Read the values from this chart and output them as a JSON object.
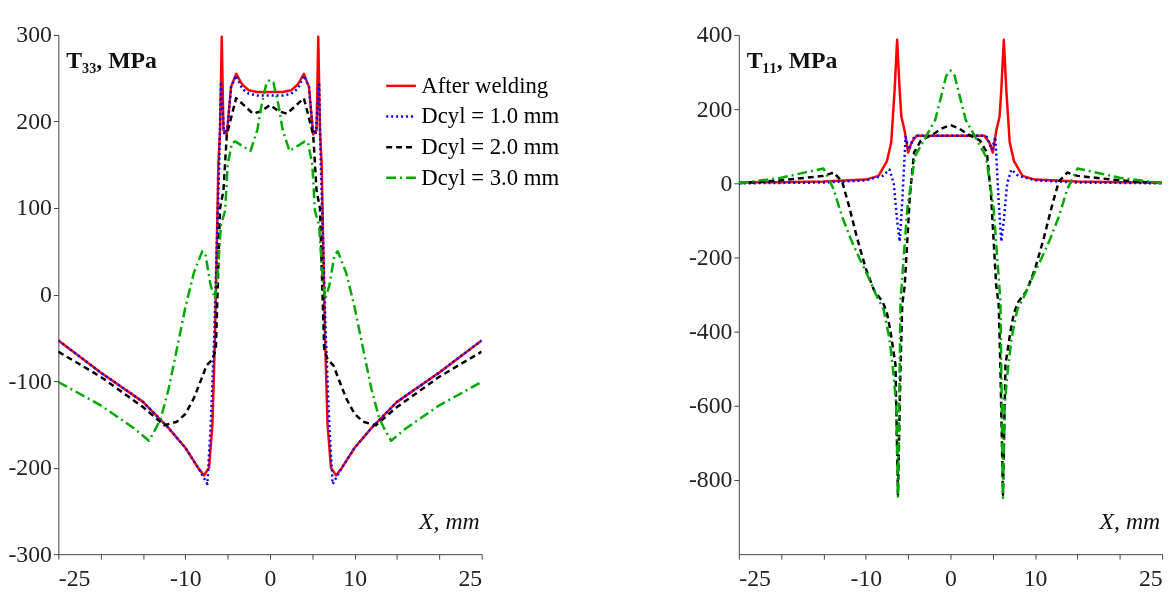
{
  "chart_data": [
    {
      "type": "line",
      "xlabel": "X, mm",
      "ylabel": "T₃₃, MPa",
      "xlim": [
        -25,
        25
      ],
      "ylim": [
        -300,
        300
      ],
      "xticks": [
        -25,
        {
          "value": -20,
          "label": null
        },
        {
          "value": -15,
          "label": null
        },
        -10,
        {
          "value": -5,
          "label": null
        },
        0,
        {
          "value": 5,
          "label": null
        },
        10,
        {
          "value": 15,
          "label": null
        },
        {
          "value": 20,
          "label": null
        },
        25
      ],
      "yticks": [
        -300,
        -200,
        -100,
        0,
        100,
        200,
        300
      ],
      "grid": false,
      "legend": "top right",
      "series": [
        {
          "name": "After welding",
          "color": "#ff0000",
          "line_style": "solid",
          "x": [
            -25,
            -20,
            -15,
            -12,
            -10,
            -8.5,
            -7.8,
            -7.2,
            -6.8,
            -6.5,
            -6.3,
            -6.1,
            -5.9,
            -5.7,
            -5.5,
            -5.1,
            -4.6,
            -4,
            -3.3,
            -2.5,
            -1.5,
            0,
            1.5,
            2.5,
            3.3,
            4,
            4.6,
            5.1,
            5.5,
            5.7,
            5.9,
            6.1,
            6.3,
            6.5,
            6.8,
            7.2,
            7.8,
            8.5,
            10,
            12,
            15,
            20,
            25
          ],
          "values": [
            -53,
            -90,
            -124,
            -154,
            -177,
            -200,
            -209,
            -200,
            -150,
            -50,
            50,
            150,
            190,
            298,
            190,
            185,
            240,
            255,
            243,
            236,
            234,
            234,
            234,
            236,
            243,
            255,
            240,
            185,
            190,
            298,
            190,
            150,
            50,
            -50,
            -150,
            -200,
            -209,
            -200,
            -177,
            -154,
            -124,
            -90,
            -53
          ]
        },
        {
          "name": "Dcyl = 1.0 mm",
          "color": "#0000ff",
          "line_style": "dotted",
          "x": [
            -25,
            -20,
            -15,
            -12,
            -10,
            -8.5,
            -7.8,
            -7.4,
            -7,
            -6.6,
            -6.3,
            -6,
            -5.8,
            -5.4,
            -5,
            -4.6,
            -4,
            -3.3,
            -2.5,
            -1.5,
            0,
            1.5,
            2.5,
            3.3,
            4,
            4.6,
            5,
            5.4,
            5.8,
            6,
            6.3,
            6.6,
            7,
            7.4,
            7.8,
            8.5,
            10,
            12,
            15,
            20,
            25
          ],
          "values": [
            -53,
            -90,
            -124,
            -154,
            -177,
            -200,
            -212,
            -219,
            -150,
            -50,
            50,
            150,
            243,
            185,
            195,
            240,
            253,
            238,
            232,
            230,
            230,
            230,
            232,
            238,
            253,
            240,
            195,
            185,
            243,
            150,
            50,
            -50,
            -150,
            -219,
            -212,
            -200,
            -177,
            -154,
            -124,
            -90,
            -53
          ]
        },
        {
          "name": "Dcyl = 2.0 mm",
          "color": "#000000",
          "line_style": "dashed",
          "x": [
            -25,
            -20,
            -15,
            -12.5,
            -11,
            -10,
            -9,
            -8,
            -7.5,
            -6.8,
            -6.4,
            -6.2,
            -5.9,
            -5.5,
            -5.1,
            -4,
            -3,
            -2,
            -1,
            0,
            1,
            2,
            3,
            4,
            5.1,
            5.5,
            5.9,
            6.2,
            6.4,
            6.8,
            7.5,
            8,
            9,
            10,
            11,
            12.5,
            15,
            20,
            25
          ],
          "values": [
            -66,
            -95,
            -130,
            -151,
            -147,
            -138,
            -120,
            -95,
            -82,
            -75,
            -63,
            0,
            100,
            120,
            185,
            227,
            218,
            209,
            212,
            219,
            212,
            209,
            218,
            227,
            185,
            120,
            100,
            0,
            -63,
            -75,
            -82,
            -95,
            -120,
            -138,
            -147,
            -151,
            -130,
            -95,
            -66
          ]
        },
        {
          "name": "Dcyl = 3.0 mm",
          "color": "#00aa00",
          "line_style": "dashdot",
          "x": [
            -25,
            -20,
            -16,
            -14.3,
            -13.5,
            -12.9,
            -12,
            -11,
            -10,
            -9,
            -8,
            -7.6,
            -7,
            -6.5,
            -6.2,
            -5.8,
            -5.3,
            -5,
            -4.5,
            -4.1,
            -3,
            -2.3,
            -1.5,
            -1,
            -0.4,
            0,
            0.4,
            1,
            1.5,
            2.3,
            3,
            4.1,
            4.5,
            5,
            5.3,
            5.8,
            6.2,
            6.5,
            7,
            7.6,
            8,
            9,
            10,
            11,
            12,
            12.9,
            13.5,
            14.3,
            16,
            20,
            25
          ],
          "values": [
            -101,
            -128,
            -155,
            -169,
            -155,
            -143,
            -110,
            -63,
            -15,
            25,
            50,
            45,
            10,
            -5,
            20,
            80,
            97,
            150,
            175,
            177,
            170,
            166,
            190,
            219,
            245,
            248,
            245,
            219,
            190,
            166,
            170,
            177,
            175,
            150,
            97,
            80,
            20,
            -5,
            10,
            45,
            50,
            25,
            -15,
            -63,
            -110,
            -143,
            -155,
            -169,
            -155,
            -128,
            -101
          ]
        }
      ]
    },
    {
      "type": "line",
      "xlabel": "X, mm",
      "ylabel": "T₁₁, MPa",
      "xlim": [
        -25,
        25
      ],
      "ylim": [
        -1000,
        400
      ],
      "xticks": [
        -25,
        {
          "value": -20,
          "label": null
        },
        {
          "value": -15,
          "label": null
        },
        -10,
        {
          "value": -5,
          "label": null
        },
        0,
        {
          "value": 5,
          "label": null
        },
        10,
        {
          "value": 15,
          "label": null
        },
        {
          "value": 20,
          "label": null
        },
        25
      ],
      "yticks": [
        -800,
        -600,
        -400,
        -200,
        0,
        200,
        400
      ],
      "grid": false,
      "series": [
        {
          "color": "#ff0000",
          "line_style": "solid",
          "x": [
            -25,
            -20,
            -15,
            -10,
            -8.5,
            -7.5,
            -7,
            -6.6,
            -6.3,
            -6,
            -5.8,
            -5.4,
            -5,
            -4.6,
            -4,
            0,
            4,
            4.6,
            5,
            5.4,
            5.8,
            6,
            6.3,
            6.6,
            7,
            7.5,
            8.5,
            10,
            15,
            20,
            25
          ],
          "values": [
            2,
            3,
            5,
            10,
            20,
            60,
            110,
            250,
            387,
            250,
            180,
            140,
            83,
            110,
            128,
            128,
            128,
            110,
            83,
            140,
            180,
            250,
            387,
            250,
            110,
            60,
            20,
            10,
            5,
            3,
            2
          ]
        },
        {
          "color": "#0000ff",
          "line_style": "dotted",
          "x": [
            -25,
            -15,
            -10,
            -8,
            -7.2,
            -6.7,
            -6.3,
            -6,
            -5.7,
            -5.3,
            -4.9,
            -4.3,
            -4,
            0,
            4,
            4.3,
            4.9,
            5.3,
            5.7,
            6,
            6.3,
            6.7,
            7.2,
            8,
            10,
            15,
            25
          ],
          "values": [
            0,
            2,
            8,
            20,
            37,
            0,
            -100,
            -157,
            -50,
            125,
            91,
            125,
            128,
            128,
            128,
            125,
            91,
            125,
            -50,
            -157,
            -100,
            0,
            37,
            20,
            8,
            2,
            0
          ]
        },
        {
          "color": "#000000",
          "line_style": "dashed",
          "x": [
            -25,
            -20,
            -15,
            -13.8,
            -12.8,
            -12,
            -11,
            -10,
            -9,
            -8,
            -7.5,
            -7.1,
            -6.5,
            -6.2,
            -5.9,
            -5.7,
            -5.4,
            -4.8,
            -4.3,
            -3.5,
            -2,
            -1,
            0,
            1,
            2,
            3.5,
            4.3,
            4.8,
            5.4,
            5.7,
            5.9,
            6.2,
            6.5,
            7.1,
            7.5,
            8,
            9,
            10,
            11,
            12,
            12.8,
            13.8,
            15,
            20,
            25
          ],
          "values": [
            0,
            8,
            20,
            29,
            5,
            -60,
            -150,
            -230,
            -290,
            -320,
            -350,
            -397,
            -488,
            -840,
            -500,
            -328,
            -275,
            -35,
            83,
            115,
            133,
            148,
            157,
            148,
            133,
            115,
            83,
            -35,
            -275,
            -328,
            -500,
            -840,
            -488,
            -397,
            -350,
            -320,
            -290,
            -230,
            -150,
            -60,
            5,
            29,
            20,
            8,
            0
          ]
        },
        {
          "color": "#00aa00",
          "line_style": "dashdot",
          "x": [
            -25,
            -20,
            -17,
            -15,
            -13.8,
            -12.8,
            -11.8,
            -10.8,
            -9.8,
            -8.8,
            -7.9,
            -7.2,
            -6.7,
            -6.4,
            -6.2,
            -6,
            -5.9,
            -5.1,
            -4.2,
            -3,
            -1.8,
            -1,
            -0.5,
            0,
            0.5,
            1,
            1.8,
            3,
            4.2,
            5.1,
            5.9,
            6,
            6.2,
            6.4,
            6.7,
            7.2,
            7.9,
            8.8,
            9.8,
            10.8,
            11.8,
            12.8,
            13.8,
            15,
            17,
            20,
            25
          ],
          "values": [
            0,
            15,
            30,
            40,
            -16,
            -90,
            -149,
            -200,
            -248,
            -300,
            -340,
            -420,
            -520,
            -600,
            -848,
            -500,
            -317,
            -69,
            72,
            122,
            171,
            243,
            290,
            304,
            290,
            243,
            171,
            122,
            72,
            -69,
            -317,
            -500,
            -848,
            -600,
            -520,
            -420,
            -340,
            -300,
            -248,
            -200,
            -149,
            -90,
            -16,
            40,
            30,
            15,
            0
          ]
        }
      ]
    }
  ]
}
